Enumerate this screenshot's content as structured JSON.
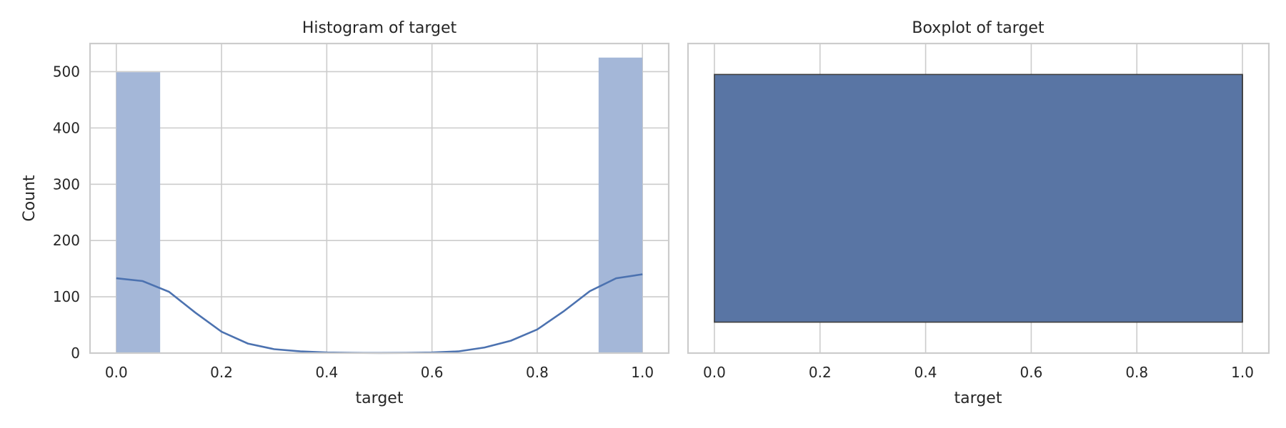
{
  "colors": {
    "bar_fill": "#a4b7d8",
    "kde_line": "#4c72b0",
    "box_fill": "#5975a4",
    "box_edge": "#3d3d3d",
    "grid": "#cccccc"
  },
  "chart_data": [
    {
      "type": "histogram",
      "title": "Histogram of target",
      "xlabel": "target",
      "ylabel": "Count",
      "xlim": [
        -0.05,
        1.05
      ],
      "ylim": [
        0,
        550
      ],
      "xticks": [
        0.0,
        0.2,
        0.4,
        0.6,
        0.8,
        1.0
      ],
      "xtick_labels": [
        "0.0",
        "0.2",
        "0.4",
        "0.6",
        "0.8",
        "1.0"
      ],
      "yticks": [
        0,
        100,
        200,
        300,
        400,
        500
      ],
      "ytick_labels": [
        "0",
        "100",
        "200",
        "300",
        "400",
        "500"
      ],
      "bins": [
        {
          "x0": 0.0,
          "x1": 0.0833,
          "count": 499
        },
        {
          "x0": 0.9167,
          "x1": 1.0,
          "count": 525
        }
      ],
      "kde": {
        "x": [
          0.0,
          0.05,
          0.1,
          0.15,
          0.2,
          0.25,
          0.3,
          0.35,
          0.4,
          0.45,
          0.5,
          0.55,
          0.6,
          0.65,
          0.7,
          0.75,
          0.8,
          0.85,
          0.9,
          0.95,
          1.0
        ],
        "y": [
          133,
          128,
          109,
          72,
          38,
          17,
          7,
          3,
          1,
          0.4,
          0.3,
          0.4,
          1,
          3,
          10,
          22,
          42,
          74,
          110,
          133,
          140
        ]
      }
    },
    {
      "type": "boxplot",
      "title": "Boxplot of target",
      "xlabel": "target",
      "xlim": [
        -0.05,
        1.05
      ],
      "xticks": [
        0.0,
        0.2,
        0.4,
        0.6,
        0.8,
        1.0
      ],
      "xtick_labels": [
        "0.0",
        "0.2",
        "0.4",
        "0.6",
        "0.8",
        "1.0"
      ],
      "q1": 0.0,
      "median": 1.0,
      "q3": 1.0,
      "whisker_low": 0.0,
      "whisker_high": 1.0
    }
  ]
}
